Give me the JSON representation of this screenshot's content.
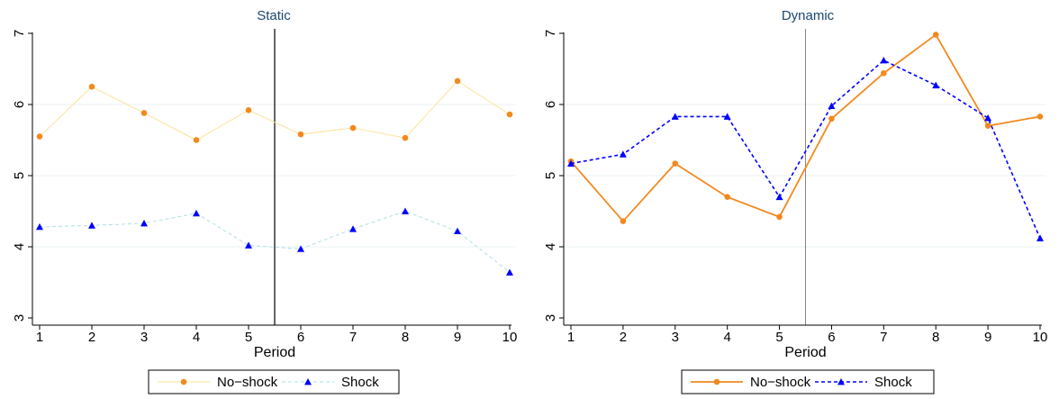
{
  "colors": {
    "no_shock": "#f3891e",
    "shock": "#0000ff",
    "no_shock_faint": "#fce29a",
    "shock_faint": "#aedfe8",
    "gridline": "#eaf2f3",
    "axis": "#000000",
    "divider": "#000000",
    "legend_border": "#000000"
  },
  "chart_data": [
    {
      "type": "line",
      "title": "Static",
      "xlabel": "Period",
      "ylabel": "",
      "x": [
        1,
        2,
        3,
        4,
        5,
        6,
        7,
        8,
        9,
        10
      ],
      "xticks": [
        "1",
        "2",
        "3",
        "4",
        "5",
        "6",
        "7",
        "8",
        "9",
        "10"
      ],
      "yticks": [
        "3",
        "4",
        "5",
        "6",
        "7"
      ],
      "ylim": [
        3,
        7
      ],
      "xlim": [
        1,
        10
      ],
      "grid": true,
      "divider_x": 5.5,
      "legend_position": "bottom",
      "series": [
        {
          "name": "No−shock",
          "marker": "circle",
          "line_style": "solid-faint",
          "values": [
            5.55,
            6.25,
            5.88,
            5.5,
            5.92,
            5.58,
            5.67,
            5.53,
            6.33,
            5.86
          ]
        },
        {
          "name": "Shock",
          "marker": "triangle",
          "line_style": "dashed-faint",
          "values": [
            4.28,
            4.3,
            4.33,
            4.47,
            4.02,
            3.97,
            4.25,
            4.5,
            4.22,
            3.64
          ]
        }
      ]
    },
    {
      "type": "line",
      "title": "Dynamic",
      "xlabel": "Period",
      "ylabel": "",
      "x": [
        1,
        2,
        3,
        4,
        5,
        6,
        7,
        8,
        9,
        10
      ],
      "xticks": [
        "1",
        "2",
        "3",
        "4",
        "5",
        "6",
        "7",
        "8",
        "9",
        "10"
      ],
      "yticks": [
        "3",
        "4",
        "5",
        "6",
        "7"
      ],
      "ylim": [
        3,
        7
      ],
      "xlim": [
        1,
        10
      ],
      "grid": true,
      "divider_x": 5.5,
      "legend_position": "bottom",
      "series": [
        {
          "name": "No−shock",
          "marker": "circle",
          "line_style": "solid-bright",
          "values": [
            5.2,
            4.36,
            5.17,
            4.7,
            4.42,
            5.8,
            6.44,
            6.98,
            5.7,
            5.83
          ]
        },
        {
          "name": "Shock",
          "marker": "triangle",
          "line_style": "dashed-bright",
          "values": [
            5.17,
            5.3,
            5.83,
            5.83,
            4.7,
            5.98,
            6.62,
            6.27,
            5.81,
            4.12
          ]
        }
      ]
    }
  ]
}
